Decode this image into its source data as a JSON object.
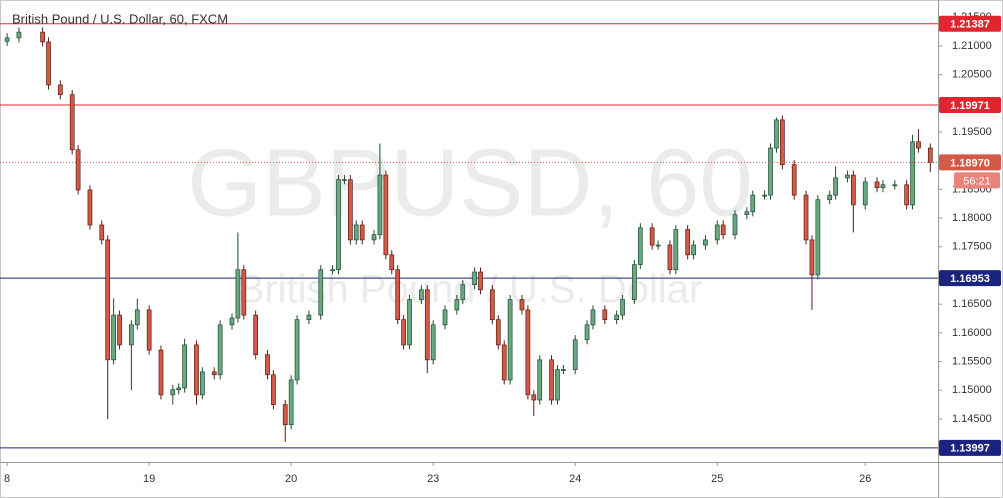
{
  "chart_data": {
    "type": "candlestick",
    "title": "British Pound / U.S. Dollar, 60, FXCM",
    "watermark": "GBPUSD, 60",
    "watermark_subtitle": "British Pound / U.S. Dollar",
    "up_color": "#6aa883",
    "down_color": "#d45a48",
    "up_border": "#1f4a32",
    "down_border": "#5a1c14",
    "xlim": [
      -1.2,
      157.3
    ],
    "xticks": [
      {
        "value": 0,
        "label": "8"
      },
      {
        "value": 24,
        "label": "19"
      },
      {
        "value": 48,
        "label": "20"
      },
      {
        "value": 72,
        "label": "23"
      },
      {
        "value": 96,
        "label": "24"
      },
      {
        "value": 120,
        "label": "25"
      },
      {
        "value": 145,
        "label": "26"
      }
    ],
    "ylim": [
      1.1375,
      1.218
    ],
    "yticks": [
      {
        "value": 1.215,
        "label": "1.21500"
      },
      {
        "value": 1.21,
        "label": "1.21000"
      },
      {
        "value": 1.205,
        "label": "1.20500"
      },
      {
        "value": 1.195,
        "label": "1.19500"
      },
      {
        "value": 1.185,
        "label": "1.18500"
      },
      {
        "value": 1.18,
        "label": "1.18000"
      },
      {
        "value": 1.175,
        "label": "1.17500"
      },
      {
        "value": 1.165,
        "label": "1.16500"
      },
      {
        "value": 1.16,
        "label": "1.16000"
      },
      {
        "value": 1.155,
        "label": "1.15500"
      },
      {
        "value": 1.15,
        "label": "1.15000"
      },
      {
        "value": 1.145,
        "label": "1.14500"
      }
    ],
    "levels": [
      {
        "value": 1.21387,
        "color": "#e0252e"
      },
      {
        "value": 1.19971,
        "color": "#e0252e"
      },
      {
        "value": 1.16953,
        "color": "#1a237e"
      },
      {
        "value": 1.13997,
        "color": "#1a237e"
      }
    ],
    "current_price": {
      "value": 1.1897,
      "label": "1.18970",
      "countdown": "56:21",
      "color": "#d45a48"
    },
    "x": [
      0,
      2,
      6,
      7,
      9,
      11,
      12,
      14,
      16,
      17,
      18,
      19,
      21,
      22,
      24,
      26,
      28,
      29,
      30,
      32,
      33,
      35,
      36,
      38,
      39,
      40,
      42,
      44,
      45,
      47,
      48,
      49,
      51,
      53,
      55,
      56,
      57,
      58,
      59,
      60,
      62,
      63,
      64,
      65,
      66,
      67,
      68,
      70,
      71,
      72,
      74,
      76,
      77,
      79,
      80,
      82,
      83,
      84,
      85,
      87,
      88,
      89,
      90,
      92,
      93,
      94,
      96,
      98,
      99,
      101,
      103,
      104,
      106,
      107,
      109,
      110,
      112,
      113,
      115,
      116,
      118,
      120,
      121,
      123,
      125,
      126,
      128,
      129,
      130,
      131,
      133,
      135,
      136,
      137,
      139,
      140,
      142,
      143,
      145,
      147,
      148,
      150,
      152,
      153,
      154,
      156
    ],
    "open": [
      1.2108,
      1.2114,
      1.2124,
      1.2107,
      1.2032,
      1.2015,
      1.1919,
      1.1849,
      1.1788,
      1.1762,
      1.1553,
      1.1631,
      1.1579,
      1.1614,
      1.164,
      1.157,
      1.1492,
      1.1501,
      1.1504,
      1.1579,
      1.1492,
      1.1532,
      1.1527,
      1.1614,
      1.1626,
      1.171,
      1.1631,
      1.1562,
      1.1527,
      1.1475,
      1.144,
      1.1518,
      1.1623,
      1.1631,
      1.171,
      1.171,
      1.1867,
      1.1867,
      1.1762,
      1.1788,
      1.1762,
      1.1771,
      1.1875,
      1.1736,
      1.171,
      1.1623,
      1.1579,
      1.1658,
      1.1675,
      1.1553,
      1.1614,
      1.164,
      1.1658,
      1.1684,
      1.1706,
      1.1675,
      1.1623,
      1.1579,
      1.1518,
      1.1658,
      1.164,
      1.1492,
      1.1483,
      1.1553,
      1.1483,
      1.1536,
      1.1536,
      1.1588,
      1.1614,
      1.164,
      1.1623,
      1.1631,
      1.1658,
      1.1719,
      1.1783,
      1.1753,
      1.1753,
      1.171,
      1.178,
      1.1736,
      1.1753,
      1.1762,
      1.1788,
      1.1771,
      1.1806,
      1.1811,
      1.184,
      1.184,
      1.1922,
      1.1971,
      1.1893,
      1.184,
      1.1762,
      1.1701,
      1.1832,
      1.184,
      1.187,
      1.1875,
      1.1823,
      1.1863,
      1.1853,
      1.1858,
      1.1858,
      1.1823,
      1.1933,
      1.1922
    ],
    "high": [
      1.2122,
      1.2132,
      1.2132,
      1.2115,
      1.204,
      1.2023,
      1.1927,
      1.1857,
      1.1796,
      1.177,
      1.166,
      1.1639,
      1.1622,
      1.166,
      1.1648,
      1.1578,
      1.1509,
      1.1512,
      1.159,
      1.1587,
      1.154,
      1.154,
      1.1622,
      1.1634,
      1.1775,
      1.1718,
      1.1639,
      1.157,
      1.1535,
      1.1483,
      1.1526,
      1.1631,
      1.1639,
      1.1718,
      1.1718,
      1.1875,
      1.1875,
      1.1875,
      1.1796,
      1.1796,
      1.1779,
      1.193,
      1.1883,
      1.1744,
      1.1718,
      1.1631,
      1.1666,
      1.1683,
      1.1683,
      1.1622,
      1.1648,
      1.1666,
      1.1692,
      1.1714,
      1.1714,
      1.1683,
      1.1631,
      1.1587,
      1.1666,
      1.1666,
      1.1648,
      1.15,
      1.1561,
      1.1561,
      1.1544,
      1.1544,
      1.1596,
      1.1622,
      1.1648,
      1.1648,
      1.1639,
      1.1666,
      1.1727,
      1.1791,
      1.1791,
      1.1761,
      1.1761,
      1.1788,
      1.1788,
      1.1761,
      1.177,
      1.1796,
      1.1796,
      1.1814,
      1.1819,
      1.1848,
      1.1848,
      1.193,
      1.1975,
      1.1979,
      1.1901,
      1.1848,
      1.177,
      1.184,
      1.1848,
      1.189,
      1.1883,
      1.1883,
      1.1871,
      1.1871,
      1.1866,
      1.1866,
      1.1866,
      1.1945,
      1.1955,
      1.193
    ],
    "low": [
      1.21,
      1.2106,
      1.2099,
      1.2024,
      1.2007,
      1.1911,
      1.1841,
      1.178,
      1.1754,
      1.145,
      1.1545,
      1.1571,
      1.15,
      1.1606,
      1.1562,
      1.1484,
      1.1475,
      1.1493,
      1.1496,
      1.1475,
      1.1484,
      1.1519,
      1.1519,
      1.1606,
      1.1618,
      1.1623,
      1.1554,
      1.1519,
      1.1467,
      1.141,
      1.1432,
      1.151,
      1.1615,
      1.1623,
      1.1702,
      1.1702,
      1.1859,
      1.1754,
      1.1754,
      1.1754,
      1.1754,
      1.1763,
      1.1728,
      1.1702,
      1.1615,
      1.1571,
      1.1571,
      1.165,
      1.153,
      1.1545,
      1.1606,
      1.1632,
      1.165,
      1.1676,
      1.1667,
      1.1615,
      1.1571,
      1.151,
      1.151,
      1.1632,
      1.1484,
      1.1455,
      1.1475,
      1.1475,
      1.1475,
      1.1528,
      1.1528,
      1.158,
      1.1606,
      1.1615,
      1.1615,
      1.1623,
      1.165,
      1.1711,
      1.1745,
      1.1745,
      1.1702,
      1.1702,
      1.1728,
      1.1728,
      1.1745,
      1.1754,
      1.1763,
      1.1763,
      1.1798,
      1.1803,
      1.1832,
      1.1832,
      1.1914,
      1.1885,
      1.1832,
      1.1754,
      1.164,
      1.1693,
      1.1824,
      1.1832,
      1.1862,
      1.1775,
      1.1815,
      1.1845,
      1.1845,
      1.185,
      1.1815,
      1.1815,
      1.1914,
      1.188
    ],
    "close": [
      1.2114,
      1.2124,
      1.2107,
      1.2032,
      1.2015,
      1.1919,
      1.1849,
      1.1788,
      1.1762,
      1.1553,
      1.1631,
      1.1579,
      1.1614,
      1.164,
      1.157,
      1.1492,
      1.1501,
      1.1504,
      1.1579,
      1.1492,
      1.1532,
      1.1527,
      1.1614,
      1.1626,
      1.171,
      1.1631,
      1.1562,
      1.1527,
      1.1475,
      1.144,
      1.1518,
      1.1623,
      1.1631,
      1.171,
      1.171,
      1.1867,
      1.1867,
      1.1762,
      1.1788,
      1.1762,
      1.1771,
      1.1875,
      1.1736,
      1.171,
      1.1623,
      1.1579,
      1.1658,
      1.1675,
      1.1553,
      1.1614,
      1.164,
      1.1658,
      1.1684,
      1.1706,
      1.1675,
      1.1623,
      1.1579,
      1.1518,
      1.1658,
      1.164,
      1.1492,
      1.1483,
      1.1553,
      1.1483,
      1.1536,
      1.1536,
      1.1588,
      1.1614,
      1.164,
      1.1623,
      1.1631,
      1.1658,
      1.1719,
      1.1783,
      1.1753,
      1.1753,
      1.171,
      1.178,
      1.1736,
      1.1753,
      1.1762,
      1.1788,
      1.1771,
      1.1806,
      1.1811,
      1.184,
      1.184,
      1.1922,
      1.1971,
      1.1893,
      1.184,
      1.1762,
      1.1701,
      1.1832,
      1.184,
      1.187,
      1.1875,
      1.1823,
      1.1863,
      1.1853,
      1.1858,
      1.1858,
      1.1823,
      1.1933,
      1.1922,
      1.1897
    ]
  }
}
